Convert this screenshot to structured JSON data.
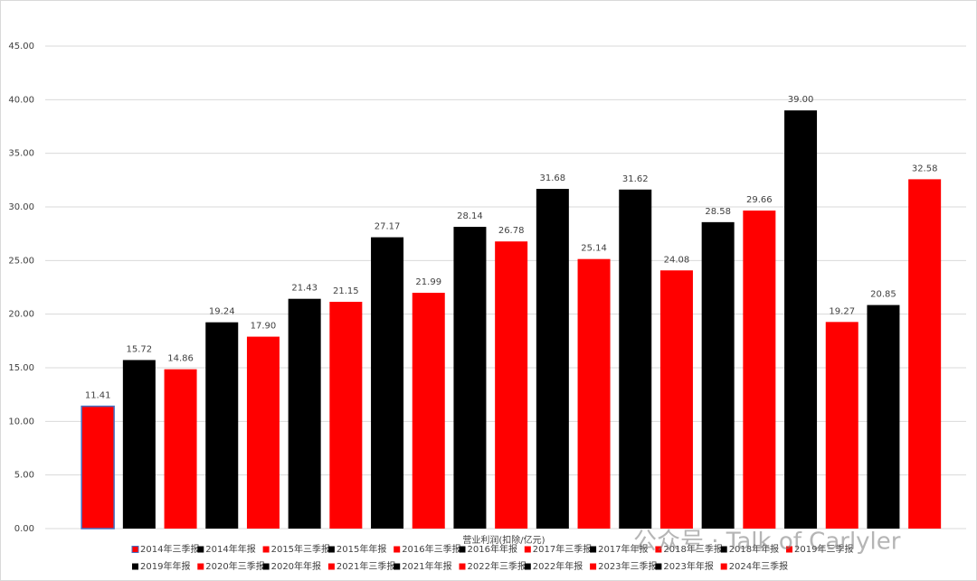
{
  "chart_data": {
    "type": "bar",
    "x_label": "营业利润(扣除/亿元)",
    "categories": [
      "2014年三季报",
      "2014年年报",
      "2015年三季报",
      "2015年年报",
      "2016年三季报",
      "2016年年报",
      "2017年三季报",
      "2017年年报",
      "2018年三季报",
      "2018年年报",
      "2019年三季报",
      "2019年年报",
      "2020年三季报",
      "2020年年报",
      "2021年三季报",
      "2021年年报",
      "2022年三季报",
      "2022年年报",
      "2023年三季报",
      "2023年年报",
      "2024年三季报"
    ],
    "values": [
      11.41,
      15.72,
      14.86,
      19.24,
      17.9,
      21.43,
      21.15,
      27.17,
      21.99,
      28.14,
      26.78,
      31.68,
      25.14,
      31.62,
      24.08,
      28.58,
      29.66,
      39.0,
      19.27,
      20.85,
      32.58
    ],
    "value_labels": [
      "11.41",
      "15.72",
      "14.86",
      "19.24",
      "17.90",
      "21.43",
      "21.15",
      "27.17",
      "21.99",
      "28.14",
      "26.78",
      "31.68",
      "25.14",
      "31.62",
      "24.08",
      "28.58",
      "29.66",
      "39.00",
      "19.27",
      "20.85",
      "32.58"
    ],
    "colors": [
      "#ff0000",
      "#000000",
      "#ff0000",
      "#000000",
      "#ff0000",
      "#000000",
      "#ff0000",
      "#000000",
      "#ff0000",
      "#000000",
      "#ff0000",
      "#000000",
      "#ff0000",
      "#000000",
      "#ff0000",
      "#000000",
      "#ff0000",
      "#000000",
      "#ff0000",
      "#000000",
      "#ff0000"
    ],
    "ylim": [
      0,
      45
    ],
    "yticks": [
      {
        "value": 0,
        "label": "0.00"
      },
      {
        "value": 5,
        "label": "5.00"
      },
      {
        "value": 10,
        "label": "10.00"
      },
      {
        "value": 15,
        "label": "15.00"
      },
      {
        "value": 20,
        "label": "20.00"
      },
      {
        "value": 25,
        "label": "25.00"
      },
      {
        "value": 30,
        "label": "30.00"
      },
      {
        "value": 35,
        "label": "35.00"
      },
      {
        "value": 40,
        "label": "40.00"
      },
      {
        "value": 45,
        "label": "45.00"
      }
    ],
    "grid": true,
    "legend": "bottom",
    "watermark": "公众号 · Talk of Carlyler"
  }
}
